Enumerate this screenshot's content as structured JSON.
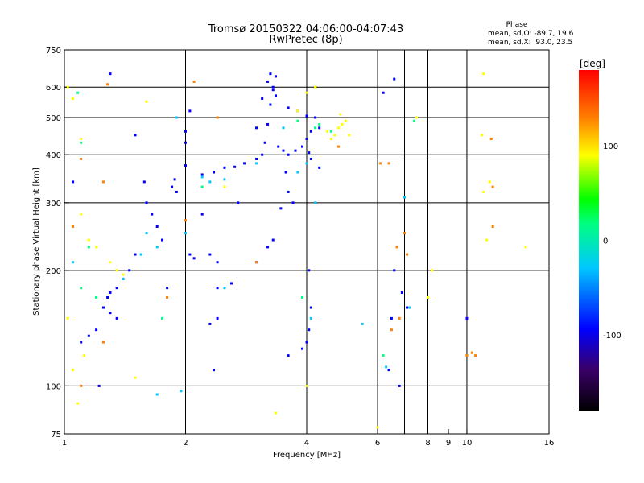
{
  "chart_data": {
    "type": "scatter",
    "title": "Tromsø 20150322 04:06:00-04:07:43",
    "subtitle": "RwPretec (8p)",
    "xlabel": "Frequency [MHz]",
    "ylabel": "Stationary phase Virtual Height [km]",
    "x_scale": "log",
    "y_scale": "log",
    "xlim": [
      1,
      16
    ],
    "ylim": [
      75,
      750
    ],
    "x_ticks": [
      1,
      2,
      4,
      6,
      8,
      9,
      10,
      16
    ],
    "x_tick_labels": [
      "1",
      "2",
      "4",
      "6",
      "8",
      "9",
      "10",
      "16"
    ],
    "x_grid": [
      2,
      4,
      6,
      7,
      8,
      10
    ],
    "y_ticks": [
      75,
      100,
      200,
      300,
      400,
      500,
      600,
      750
    ],
    "y_tick_labels": [
      "75",
      "100",
      "200",
      "300",
      "400",
      "500",
      "600",
      "750"
    ],
    "y_grid": [
      100,
      200,
      300,
      400,
      500,
      600
    ],
    "grid": true,
    "phase_stats": {
      "title": "Phase",
      "line_o": "mean, sd,O: -89.7, 19.6",
      "line_x": "mean, sd,X:  93.0, 23.5"
    },
    "colorbar": {
      "label": "[deg]",
      "min": -180,
      "max": 180,
      "ticks": [
        100,
        0,
        -100
      ],
      "tick_labels": [
        "100",
        "0",
        "-100"
      ],
      "colormap": [
        "#000000",
        "#3a0068",
        "#0000ff",
        "#00c8ff",
        "#00ff7f",
        "#00ff00",
        "#ffff00",
        "#ff7f00",
        "#ff0000"
      ]
    },
    "series": [
      {
        "points": [
          [
            1.9,
            320
          ],
          [
            1.85,
            330
          ],
          [
            1.88,
            345
          ],
          [
            2.0,
            375
          ],
          [
            2.2,
            355
          ],
          [
            2.35,
            360
          ],
          [
            2.5,
            370
          ],
          [
            2.65,
            372
          ],
          [
            2.8,
            380
          ],
          [
            3.0,
            390
          ],
          [
            3.1,
            400
          ],
          [
            3.15,
            430
          ],
          [
            3.2,
            480
          ],
          [
            3.25,
            540
          ],
          [
            3.3,
            590
          ],
          [
            3.35,
            640
          ],
          [
            3.2,
            620
          ],
          [
            3.1,
            560
          ],
          [
            3.0,
            470
          ],
          [
            3.4,
            420
          ],
          [
            3.5,
            410
          ],
          [
            3.6,
            400
          ],
          [
            3.75,
            410
          ],
          [
            3.9,
            420
          ],
          [
            4.0,
            440
          ],
          [
            4.1,
            460
          ],
          [
            4.2,
            500
          ],
          [
            4.3,
            470
          ],
          [
            4.05,
            405
          ],
          [
            3.55,
            360
          ],
          [
            3.6,
            320
          ],
          [
            3.7,
            300
          ],
          [
            3.45,
            290
          ],
          [
            3.3,
            240
          ],
          [
            3.2,
            230
          ],
          [
            3.0,
            210
          ],
          [
            2.4,
            210
          ],
          [
            2.3,
            220
          ],
          [
            2.1,
            215
          ],
          [
            2.05,
            220
          ],
          [
            1.8,
            180
          ],
          [
            1.75,
            240
          ],
          [
            1.7,
            260
          ],
          [
            1.65,
            280
          ],
          [
            1.6,
            300
          ],
          [
            1.58,
            340
          ],
          [
            1.5,
            220
          ],
          [
            1.45,
            200
          ],
          [
            1.4,
            190
          ],
          [
            1.35,
            180
          ],
          [
            1.3,
            175
          ],
          [
            1.28,
            170
          ],
          [
            1.25,
            160
          ],
          [
            1.2,
            140
          ],
          [
            1.15,
            135
          ],
          [
            1.1,
            130
          ],
          [
            2.0,
            430
          ],
          [
            2.0,
            460
          ],
          [
            2.05,
            520
          ],
          [
            3.6,
            120
          ],
          [
            3.9,
            125
          ],
          [
            4.0,
            130
          ],
          [
            4.05,
            140
          ],
          [
            4.1,
            160
          ],
          [
            6.4,
            110
          ],
          [
            6.8,
            100
          ],
          [
            6.6,
            630
          ],
          [
            6.2,
            580
          ],
          [
            10.0,
            150
          ],
          [
            1.3,
            650
          ],
          [
            1.22,
            100
          ],
          [
            2.3,
            145
          ],
          [
            2.4,
            150
          ],
          [
            2.35,
            110
          ]
        ],
        "value": -110
      },
      {
        "points": [
          [
            1.5,
            450
          ],
          [
            2.2,
            280
          ],
          [
            2.4,
            180
          ],
          [
            2.6,
            185
          ],
          [
            3.25,
            650
          ],
          [
            3.3,
            600
          ],
          [
            3.35,
            570
          ],
          [
            3.6,
            530
          ],
          [
            3.8,
            520
          ],
          [
            4.0,
            505
          ],
          [
            2.7,
            300
          ],
          [
            4.1,
            390
          ],
          [
            4.3,
            370
          ],
          [
            6.6,
            200
          ],
          [
            6.9,
            175
          ],
          [
            7.1,
            160
          ],
          [
            1.3,
            155
          ],
          [
            1.35,
            150
          ],
          [
            1.05,
            340
          ],
          [
            4.05,
            200
          ],
          [
            6.5,
            150
          ]
        ],
        "value": -90
      },
      {
        "points": [
          [
            1.4,
            190
          ],
          [
            1.55,
            220
          ],
          [
            1.7,
            230
          ],
          [
            2.2,
            350
          ],
          [
            2.3,
            340
          ],
          [
            2.5,
            345
          ],
          [
            3.0,
            380
          ],
          [
            3.5,
            470
          ],
          [
            3.8,
            360
          ],
          [
            4.2,
            300
          ],
          [
            4.0,
            380
          ],
          [
            4.1,
            150
          ],
          [
            1.6,
            250
          ],
          [
            1.9,
            500
          ],
          [
            2.0,
            250
          ],
          [
            2.5,
            180
          ],
          [
            7.0,
            310
          ],
          [
            7.2,
            160
          ],
          [
            5.5,
            145
          ],
          [
            10.0,
            120
          ],
          [
            1.05,
            210
          ],
          [
            1.7,
            95
          ],
          [
            1.95,
            97
          ],
          [
            6.3,
            112
          ]
        ],
        "value": -45
      },
      {
        "points": [
          [
            1.1,
            180
          ],
          [
            1.15,
            230
          ],
          [
            1.2,
            170
          ],
          [
            1.75,
            150
          ],
          [
            2.2,
            330
          ],
          [
            3.8,
            490
          ],
          [
            4.2,
            470
          ],
          [
            4.3,
            480
          ],
          [
            4.6,
            460
          ],
          [
            7.4,
            490
          ],
          [
            1.1,
            430
          ],
          [
            3.9,
            170
          ],
          [
            6.2,
            120
          ],
          [
            1.08,
            580
          ]
        ],
        "value": 20
      },
      {
        "points": [
          [
            1.02,
            600
          ],
          [
            1.05,
            560
          ],
          [
            1.1,
            440
          ],
          [
            1.15,
            240
          ],
          [
            1.1,
            280
          ],
          [
            1.2,
            230
          ],
          [
            1.3,
            210
          ],
          [
            1.35,
            200
          ],
          [
            1.4,
            195
          ],
          [
            2.5,
            330
          ],
          [
            3.8,
            520
          ],
          [
            4.0,
            580
          ],
          [
            4.2,
            600
          ],
          [
            4.5,
            460
          ],
          [
            4.6,
            440
          ],
          [
            4.7,
            450
          ],
          [
            4.8,
            470
          ],
          [
            4.9,
            480
          ],
          [
            5.0,
            490
          ],
          [
            5.1,
            450
          ],
          [
            4.85,
            510
          ],
          [
            1.08,
            90
          ],
          [
            1.05,
            110
          ],
          [
            1.12,
            120
          ],
          [
            1.5,
            105
          ],
          [
            4.0,
            100
          ],
          [
            3.35,
            85
          ],
          [
            6.0,
            78
          ],
          [
            8.2,
            200
          ],
          [
            8.0,
            170
          ],
          [
            11.0,
            320
          ],
          [
            11.2,
            240
          ],
          [
            11.4,
            340
          ],
          [
            11.0,
            650
          ],
          [
            10.9,
            450
          ],
          [
            14.0,
            230
          ],
          [
            7.5,
            500
          ],
          [
            1.02,
            150
          ],
          [
            1.6,
            550
          ]
        ],
        "value": 100
      },
      {
        "points": [
          [
            1.05,
            260
          ],
          [
            1.1,
            390
          ],
          [
            1.25,
            340
          ],
          [
            1.8,
            170
          ],
          [
            2.0,
            270
          ],
          [
            2.1,
            620
          ],
          [
            2.4,
            500
          ],
          [
            3.0,
            210
          ],
          [
            6.1,
            380
          ],
          [
            6.4,
            380
          ],
          [
            6.7,
            230
          ],
          [
            6.8,
            150
          ],
          [
            7.0,
            250
          ],
          [
            7.1,
            220
          ],
          [
            10.0,
            120
          ],
          [
            10.5,
            120
          ],
          [
            10.3,
            122
          ],
          [
            11.5,
            440
          ],
          [
            11.6,
            330
          ],
          [
            11.6,
            260
          ],
          [
            6.5,
            140
          ],
          [
            1.25,
            130
          ],
          [
            1.28,
            610
          ],
          [
            1.1,
            100
          ],
          [
            4.8,
            420
          ]
        ],
        "value": 150
      }
    ]
  }
}
